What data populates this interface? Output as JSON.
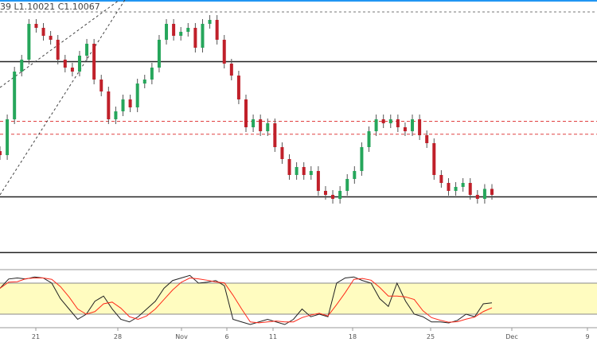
{
  "header": {
    "ohlc_text": "39  L1.10021  C1.10067"
  },
  "colors": {
    "up": "#26a65b",
    "down": "#c0202a",
    "support": "#222222",
    "resist_dash": "#e04040",
    "top_dash": "#777777",
    "stoch_k": "#222222",
    "stoch_d": "#ff2a1a",
    "band": "#fffcc0",
    "accent": "#2196f3"
  },
  "chart_data": [
    {
      "type": "candlestick",
      "title": "",
      "closes": [
        1.1047,
        1.1083,
        1.1131,
        1.1143,
        1.1179,
        1.1175,
        1.1167,
        1.1163,
        1.1143,
        1.1135,
        1.1131,
        1.1147,
        1.1159,
        1.1123,
        1.1111,
        1.1083,
        1.1091,
        1.1103,
        1.1095,
        1.1119,
        1.1123,
        1.1135,
        1.1163,
        1.1179,
        1.1167,
        1.1171,
        1.1175,
        1.1155,
        1.1179,
        1.1183,
        1.1163,
        1.1139,
        1.1127,
        1.1103,
        1.1075,
        1.1083,
        1.1071,
        1.1079,
        1.1055,
        1.1043,
        1.1027,
        1.1035,
        1.1027,
        1.1031,
        1.1011,
        1.1007,
        1.1003,
        1.1011,
        1.1023,
        1.1031,
        1.1055,
        1.1071,
        1.1083,
        1.1079,
        1.1083,
        1.1075,
        1.1071,
        1.1083,
        1.1067,
        1.1059,
        1.1027,
        1.1019,
        1.1011,
        1.1015,
        1.1019,
        1.1007,
        1.1003,
        1.1013,
        1.1007
      ],
      "levels_solid": [
        1.1141,
        1.1005,
        1.0949
      ],
      "levels_dashed_red": [
        1.1081,
        1.1068
      ],
      "level_dashed_gray": 1.1191,
      "x_ticks": [
        "21",
        "28",
        "Nov",
        "6",
        "11",
        "18",
        "25",
        "Dec",
        "9"
      ]
    },
    {
      "type": "line",
      "title": "",
      "ylim": [
        0,
        100
      ],
      "bands": [
        20,
        80
      ],
      "k": [
        70,
        88,
        90,
        88,
        92,
        90,
        80,
        50,
        30,
        10,
        20,
        45,
        55,
        30,
        10,
        5,
        15,
        30,
        45,
        70,
        85,
        90,
        95,
        80,
        82,
        85,
        75,
        10,
        5,
        0,
        5,
        10,
        5,
        0,
        10,
        30,
        15,
        20,
        15,
        80,
        90,
        92,
        85,
        80,
        50,
        35,
        80,
        45,
        20,
        15,
        5,
        5,
        3,
        8,
        20,
        15,
        40,
        42
      ]
    }
  ]
}
